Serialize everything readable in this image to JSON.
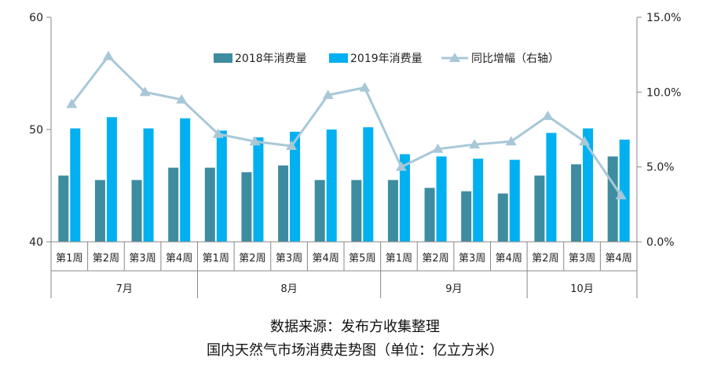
{
  "caption": {
    "source": "数据来源：发布方收集整理",
    "title": "国内天然气市场消费走势图（单位：亿立方米）"
  },
  "chart_data": {
    "type": "bar",
    "left_axis": {
      "ticks": [
        "60",
        "50",
        "40"
      ],
      "ylim": [
        40,
        60
      ]
    },
    "right_axis": {
      "ticks": [
        "15.0%",
        "10.0%",
        "5.0%",
        "0.0%"
      ],
      "ylim": [
        0,
        15
      ]
    },
    "groups": [
      {
        "label": "7月",
        "count": 4
      },
      {
        "label": "8月",
        "count": 5
      },
      {
        "label": "9月",
        "count": 4
      },
      {
        "label": "10月",
        "count": 3
      }
    ],
    "categories": [
      "第1周",
      "第2周",
      "第3周",
      "第4周",
      "第1周",
      "第2周",
      "第3周",
      "第4周",
      "第5周",
      "第1周",
      "第2周",
      "第3周",
      "第4周",
      "第2周",
      "第3周",
      "第4周"
    ],
    "series": [
      {
        "name": "2018年消费量",
        "type": "bar",
        "color": "#3e8ca0",
        "values": [
          45.9,
          45.5,
          45.5,
          46.6,
          46.6,
          46.2,
          46.8,
          45.5,
          45.5,
          45.5,
          44.8,
          44.5,
          44.3,
          45.9,
          46.9,
          47.6
        ]
      },
      {
        "name": "2019年消费量",
        "type": "bar",
        "color": "#00b0f0",
        "values": [
          50.1,
          51.1,
          50.1,
          51.0,
          49.9,
          49.3,
          49.8,
          50.0,
          50.2,
          47.8,
          47.6,
          47.4,
          47.3,
          49.7,
          50.1,
          49.1
        ]
      },
      {
        "name": "同比增幅（右轴）",
        "type": "line",
        "axis": "right",
        "color": "#a8c8d8",
        "values": [
          9.2,
          12.4,
          10.0,
          9.5,
          7.2,
          6.7,
          6.4,
          9.8,
          10.3,
          5.0,
          6.2,
          6.5,
          6.7,
          8.4,
          6.7,
          3.1
        ]
      }
    ]
  }
}
